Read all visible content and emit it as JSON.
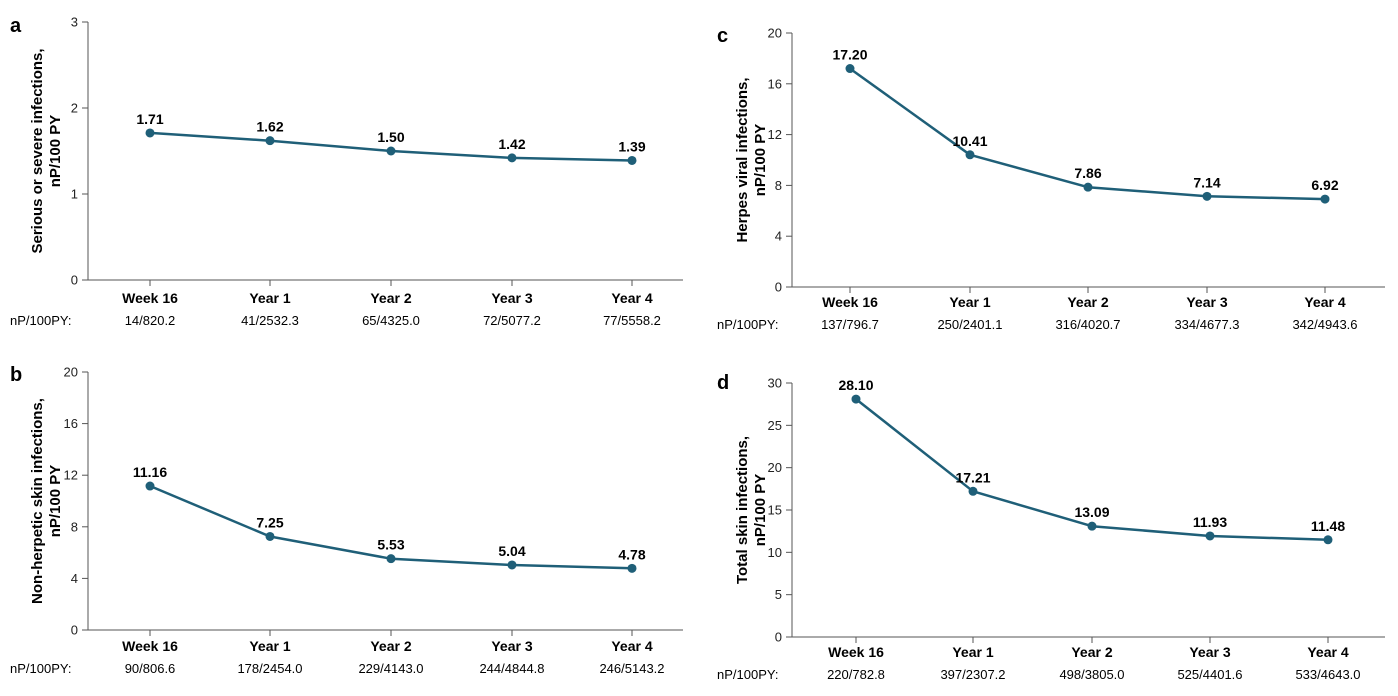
{
  "colors": {
    "series": "#1f5f78",
    "axis": "#555555",
    "text": "#000000"
  },
  "chart_data": [
    {
      "panel": "a",
      "type": "line",
      "ylabel_lines": [
        "Serious or severe infections,",
        "nP/100 PY"
      ],
      "categories": [
        "Week 16",
        "Year 1",
        "Year 2",
        "Year 3",
        "Year 4"
      ],
      "values": [
        1.71,
        1.62,
        1.5,
        1.42,
        1.39
      ],
      "data_labels": [
        "1.71",
        "1.62",
        "1.50",
        "1.42",
        "1.39"
      ],
      "ylim": [
        0,
        3
      ],
      "yticks": [
        0,
        1,
        2,
        3
      ],
      "row_label": "nP/100PY:",
      "row_values": [
        "14/820.2",
        "41/2532.3",
        "65/4325.0",
        "72/5077.2",
        "77/5558.2"
      ]
    },
    {
      "panel": "b",
      "type": "line",
      "ylabel_lines": [
        "Non-herpetic skin infections,",
        "nP/100 PY"
      ],
      "categories": [
        "Week 16",
        "Year 1",
        "Year 2",
        "Year 3",
        "Year 4"
      ],
      "values": [
        11.16,
        7.25,
        5.53,
        5.04,
        4.78
      ],
      "data_labels": [
        "11.16",
        "7.25",
        "5.53",
        "5.04",
        "4.78"
      ],
      "ylim": [
        0,
        20
      ],
      "yticks": [
        0,
        4,
        8,
        12,
        16,
        20
      ],
      "row_label": "nP/100PY:",
      "row_values": [
        "90/806.6",
        "178/2454.0",
        "229/4143.0",
        "244/4844.8",
        "246/5143.2"
      ]
    },
    {
      "panel": "c",
      "type": "line",
      "ylabel_lines": [
        "Herpes viral infections,",
        "nP/100 PY"
      ],
      "categories": [
        "Week 16",
        "Year 1",
        "Year 2",
        "Year 3",
        "Year 4"
      ],
      "values": [
        17.2,
        10.41,
        7.86,
        7.14,
        6.92
      ],
      "data_labels": [
        "17.20",
        "10.41",
        "7.86",
        "7.14",
        "6.92"
      ],
      "ylim": [
        0,
        20
      ],
      "yticks": [
        0,
        4,
        8,
        12,
        16,
        20
      ],
      "row_label": "nP/100PY:",
      "row_values": [
        "137/796.7",
        "250/2401.1",
        "316/4020.7",
        "334/4677.3",
        "342/4943.6"
      ]
    },
    {
      "panel": "d",
      "type": "line",
      "ylabel_lines": [
        "Total skin infections,",
        "nP/100 PY"
      ],
      "categories": [
        "Week 16",
        "Year 1",
        "Year 2",
        "Year 3",
        "Year 4"
      ],
      "values": [
        28.1,
        17.21,
        13.09,
        11.93,
        11.48
      ],
      "data_labels": [
        "28.10",
        "17.21",
        "13.09",
        "11.93",
        "11.48"
      ],
      "ylim": [
        0,
        30
      ],
      "yticks": [
        0,
        5,
        10,
        15,
        20,
        25,
        30
      ],
      "row_label": "nP/100PY:",
      "row_values": [
        "220/782.8",
        "397/2307.2",
        "498/3805.0",
        "525/4401.6",
        "533/4643.0"
      ]
    }
  ]
}
